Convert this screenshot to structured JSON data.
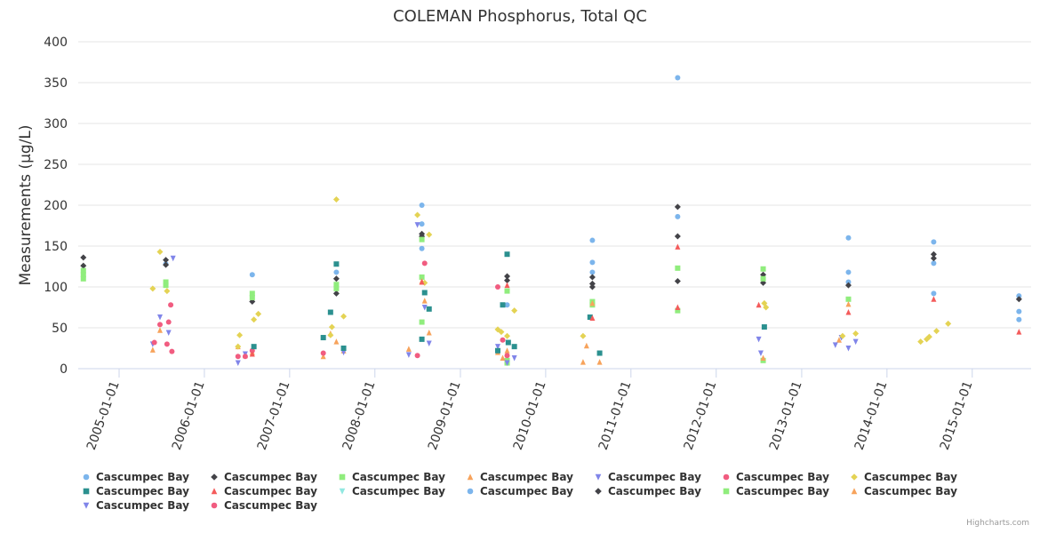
{
  "colors": {
    "blue": "#7cb5ec",
    "black": "#434348",
    "green": "#90ed7d",
    "orange": "#f7a35c",
    "purple": "#8085e9",
    "pink": "#f15c80",
    "yellow": "#e4d354",
    "teal": "#2b908f",
    "red": "#f45b5b",
    "cyan": "#91e8e1"
  },
  "credits": "Highcharts.com",
  "chart_data": {
    "type": "scatter",
    "title": "COLEMAN Phosphorus, Total QC",
    "xlabel": "",
    "ylabel": "Measurements (µg/L)",
    "xlim": [
      "2004-07-10",
      "2015-09-10"
    ],
    "ylim": [
      0,
      400
    ],
    "yticks": [
      0,
      50,
      100,
      150,
      200,
      250,
      300,
      350,
      400
    ],
    "xticks": [
      "2005-01-01",
      "2006-01-01",
      "2007-01-01",
      "2008-01-01",
      "2009-01-01",
      "2010-01-01",
      "2011-01-01",
      "2012-01-01",
      "2013-01-01",
      "2014-01-01",
      "2015-01-01"
    ],
    "grid": true,
    "legend": "bottom",
    "series": [
      {
        "name": "Cascumpec Bay",
        "marker": "circle",
        "color": "blue",
        "points": [
          [
            "2005-07-20",
            128
          ],
          [
            "2006-07-25",
            115
          ],
          [
            "2007-07-20",
            118
          ],
          [
            "2008-07-20",
            200
          ],
          [
            "2008-07-20",
            177
          ],
          [
            "2008-07-20",
            147
          ],
          [
            "2009-07-20",
            78
          ],
          [
            "2010-07-20",
            157
          ],
          [
            "2010-07-20",
            130
          ],
          [
            "2010-07-20",
            118
          ],
          [
            "2011-07-20",
            356
          ],
          [
            "2011-07-20",
            186
          ],
          [
            "2013-07-20",
            160
          ],
          [
            "2013-07-20",
            118
          ],
          [
            "2013-07-20",
            106
          ],
          [
            "2014-07-20",
            155
          ],
          [
            "2014-07-20",
            129
          ],
          [
            "2014-07-20",
            92
          ],
          [
            "2015-07-20",
            89
          ],
          [
            "2015-07-20",
            70
          ],
          [
            "2015-07-20",
            60
          ]
        ]
      },
      {
        "name": "Cascumpec Bay",
        "marker": "diamond",
        "color": "black",
        "points": [
          [
            "2004-08-01",
            136
          ],
          [
            "2004-08-01",
            126
          ],
          [
            "2005-07-20",
            133
          ],
          [
            "2005-07-20",
            127
          ],
          [
            "2006-07-25",
            82
          ],
          [
            "2007-07-20",
            110
          ],
          [
            "2007-07-20",
            92
          ],
          [
            "2008-07-20",
            165
          ],
          [
            "2008-07-20",
            162
          ],
          [
            "2009-07-20",
            113
          ],
          [
            "2009-07-20",
            108
          ],
          [
            "2010-07-20",
            112
          ],
          [
            "2010-07-20",
            104
          ],
          [
            "2010-07-20",
            100
          ],
          [
            "2011-07-20",
            198
          ],
          [
            "2011-07-20",
            162
          ],
          [
            "2011-07-20",
            107
          ],
          [
            "2012-07-20",
            115
          ],
          [
            "2012-07-20",
            105
          ],
          [
            "2013-07-20",
            102
          ],
          [
            "2014-07-20",
            140
          ],
          [
            "2014-07-20",
            135
          ],
          [
            "2015-07-20",
            85
          ]
        ]
      },
      {
        "name": "Cascumpec Bay",
        "marker": "square",
        "color": "green",
        "points": [
          [
            "2004-08-01",
            120
          ],
          [
            "2004-08-01",
            115
          ],
          [
            "2004-08-01",
            110
          ],
          [
            "2005-07-20",
            106
          ],
          [
            "2005-07-20",
            102
          ],
          [
            "2006-07-25",
            92
          ],
          [
            "2006-07-25",
            87
          ],
          [
            "2007-07-20",
            103
          ],
          [
            "2007-07-20",
            98
          ],
          [
            "2008-07-20",
            158
          ],
          [
            "2008-07-20",
            112
          ],
          [
            "2008-07-20",
            57
          ],
          [
            "2009-07-20",
            95
          ],
          [
            "2009-07-20",
            10
          ],
          [
            "2009-07-20",
            7
          ],
          [
            "2010-07-20",
            82
          ],
          [
            "2010-07-20",
            78
          ],
          [
            "2011-07-20",
            123
          ],
          [
            "2011-07-20",
            71
          ],
          [
            "2012-07-20",
            122
          ],
          [
            "2012-07-20",
            110
          ],
          [
            "2012-07-20",
            10
          ],
          [
            "2013-07-20",
            85
          ]
        ]
      },
      {
        "name": "Cascumpec Bay",
        "marker": "triangle",
        "color": "orange",
        "points": [
          [
            "2005-05-25",
            23
          ],
          [
            "2005-06-25",
            47
          ],
          [
            "2006-05-25",
            27
          ],
          [
            "2006-06-25",
            16
          ],
          [
            "2006-07-25",
            20
          ],
          [
            "2007-05-25",
            15
          ],
          [
            "2007-06-25",
            43
          ],
          [
            "2007-07-20",
            33
          ],
          [
            "2007-08-20",
            22
          ],
          [
            "2008-05-25",
            24
          ],
          [
            "2008-07-20",
            107
          ],
          [
            "2008-08-01",
            83
          ],
          [
            "2008-08-20",
            44
          ],
          [
            "2009-06-10",
            20
          ],
          [
            "2009-07-01",
            13
          ],
          [
            "2009-07-20",
            22
          ],
          [
            "2010-06-10",
            8
          ],
          [
            "2010-06-25",
            28
          ],
          [
            "2010-07-20",
            80
          ],
          [
            "2010-08-20",
            8
          ],
          [
            "2012-07-20",
            13
          ],
          [
            "2013-06-10",
            35
          ],
          [
            "2013-07-20",
            79
          ]
        ]
      },
      {
        "name": "Cascumpec Bay",
        "marker": "triangle-down",
        "color": "purple",
        "points": [
          [
            "2005-05-25",
            30
          ],
          [
            "2005-06-25",
            63
          ],
          [
            "2005-08-01",
            44
          ],
          [
            "2005-08-20",
            135
          ],
          [
            "2006-05-25",
            7
          ],
          [
            "2006-06-25",
            18
          ],
          [
            "2007-08-20",
            20
          ],
          [
            "2008-05-25",
            17
          ],
          [
            "2008-07-01",
            176
          ],
          [
            "2008-08-01",
            75
          ],
          [
            "2008-08-20",
            31
          ],
          [
            "2009-06-10",
            27
          ],
          [
            "2009-07-20",
            7
          ],
          [
            "2009-08-20",
            13
          ],
          [
            "2012-07-01",
            36
          ],
          [
            "2012-07-10",
            19
          ],
          [
            "2013-05-25",
            29
          ],
          [
            "2013-07-20",
            25
          ],
          [
            "2013-08-20",
            33
          ],
          [
            "2013-06-20",
            38
          ]
        ]
      },
      {
        "name": "Cascumpec Bay",
        "marker": "circle",
        "color": "pink",
        "points": [
          [
            "2005-06-01",
            32
          ],
          [
            "2005-06-25",
            54
          ],
          [
            "2005-07-25",
            30
          ],
          [
            "2005-08-01",
            57
          ],
          [
            "2005-08-10",
            78
          ],
          [
            "2005-08-15",
            21
          ],
          [
            "2006-05-25",
            15
          ],
          [
            "2006-06-25",
            15
          ],
          [
            "2006-07-25",
            22
          ],
          [
            "2007-05-25",
            19
          ],
          [
            "2008-07-01",
            16
          ],
          [
            "2008-08-01",
            129
          ],
          [
            "2009-06-10",
            100
          ],
          [
            "2009-07-01",
            35
          ],
          [
            "2009-07-20",
            16
          ]
        ]
      },
      {
        "name": "Cascumpec Bay",
        "marker": "diamond",
        "color": "yellow",
        "points": [
          [
            "2005-05-25",
            98
          ],
          [
            "2005-06-25",
            143
          ],
          [
            "2005-07-25",
            95
          ],
          [
            "2006-05-25",
            27
          ],
          [
            "2006-06-01",
            41
          ],
          [
            "2006-08-01",
            60
          ],
          [
            "2006-08-20",
            67
          ],
          [
            "2007-06-25",
            41
          ],
          [
            "2007-07-01",
            51
          ],
          [
            "2007-07-20",
            207
          ],
          [
            "2007-08-20",
            64
          ],
          [
            "2008-07-01",
            188
          ],
          [
            "2008-08-01",
            105
          ],
          [
            "2008-08-20",
            164
          ],
          [
            "2009-06-10",
            48
          ],
          [
            "2009-06-25",
            45
          ],
          [
            "2009-07-20",
            40
          ],
          [
            "2009-08-20",
            71
          ],
          [
            "2010-06-10",
            40
          ],
          [
            "2012-07-25",
            80
          ],
          [
            "2012-08-01",
            75
          ],
          [
            "2013-06-25",
            40
          ],
          [
            "2013-08-20",
            43
          ],
          [
            "2014-05-25",
            33
          ],
          [
            "2014-06-20",
            36
          ],
          [
            "2014-07-01",
            39
          ],
          [
            "2014-08-01",
            46
          ],
          [
            "2014-09-20",
            55
          ]
        ]
      },
      {
        "name": "Cascumpec Bay",
        "marker": "square",
        "color": "teal",
        "points": [
          [
            "2006-08-01",
            27
          ],
          [
            "2007-05-25",
            38
          ],
          [
            "2007-06-25",
            69
          ],
          [
            "2007-07-20",
            128
          ],
          [
            "2007-08-20",
            25
          ],
          [
            "2008-07-20",
            36
          ],
          [
            "2008-08-01",
            93
          ],
          [
            "2008-08-20",
            73
          ],
          [
            "2009-06-10",
            22
          ],
          [
            "2009-07-01",
            78
          ],
          [
            "2009-07-20",
            140
          ],
          [
            "2009-07-25",
            32
          ],
          [
            "2009-08-20",
            27
          ],
          [
            "2010-07-10",
            63
          ],
          [
            "2010-08-20",
            19
          ],
          [
            "2012-07-25",
            51
          ]
        ]
      },
      {
        "name": "Cascumpec Bay",
        "marker": "triangle",
        "color": "red",
        "points": [
          [
            "2006-07-25",
            18
          ],
          [
            "2008-07-20",
            106
          ],
          [
            "2009-07-20",
            102
          ],
          [
            "2010-07-20",
            62
          ],
          [
            "2011-07-20",
            149
          ],
          [
            "2011-07-20",
            75
          ],
          [
            "2012-07-01",
            78
          ],
          [
            "2013-07-20",
            69
          ],
          [
            "2014-07-20",
            85
          ],
          [
            "2015-07-20",
            45
          ]
        ]
      },
      {
        "name": "Cascumpec Bay",
        "marker": "triangle-down",
        "color": "cyan",
        "points": []
      },
      {
        "name": "Cascumpec Bay",
        "marker": "circle",
        "color": "blue",
        "points": []
      },
      {
        "name": "Cascumpec Bay",
        "marker": "diamond",
        "color": "black",
        "points": []
      },
      {
        "name": "Cascumpec Bay",
        "marker": "square",
        "color": "green",
        "points": []
      },
      {
        "name": "Cascumpec Bay",
        "marker": "triangle",
        "color": "orange",
        "points": []
      },
      {
        "name": "Cascumpec Bay",
        "marker": "triangle-down",
        "color": "purple",
        "points": []
      },
      {
        "name": "Cascumpec Bay",
        "marker": "circle",
        "color": "pink",
        "points": []
      }
    ]
  }
}
